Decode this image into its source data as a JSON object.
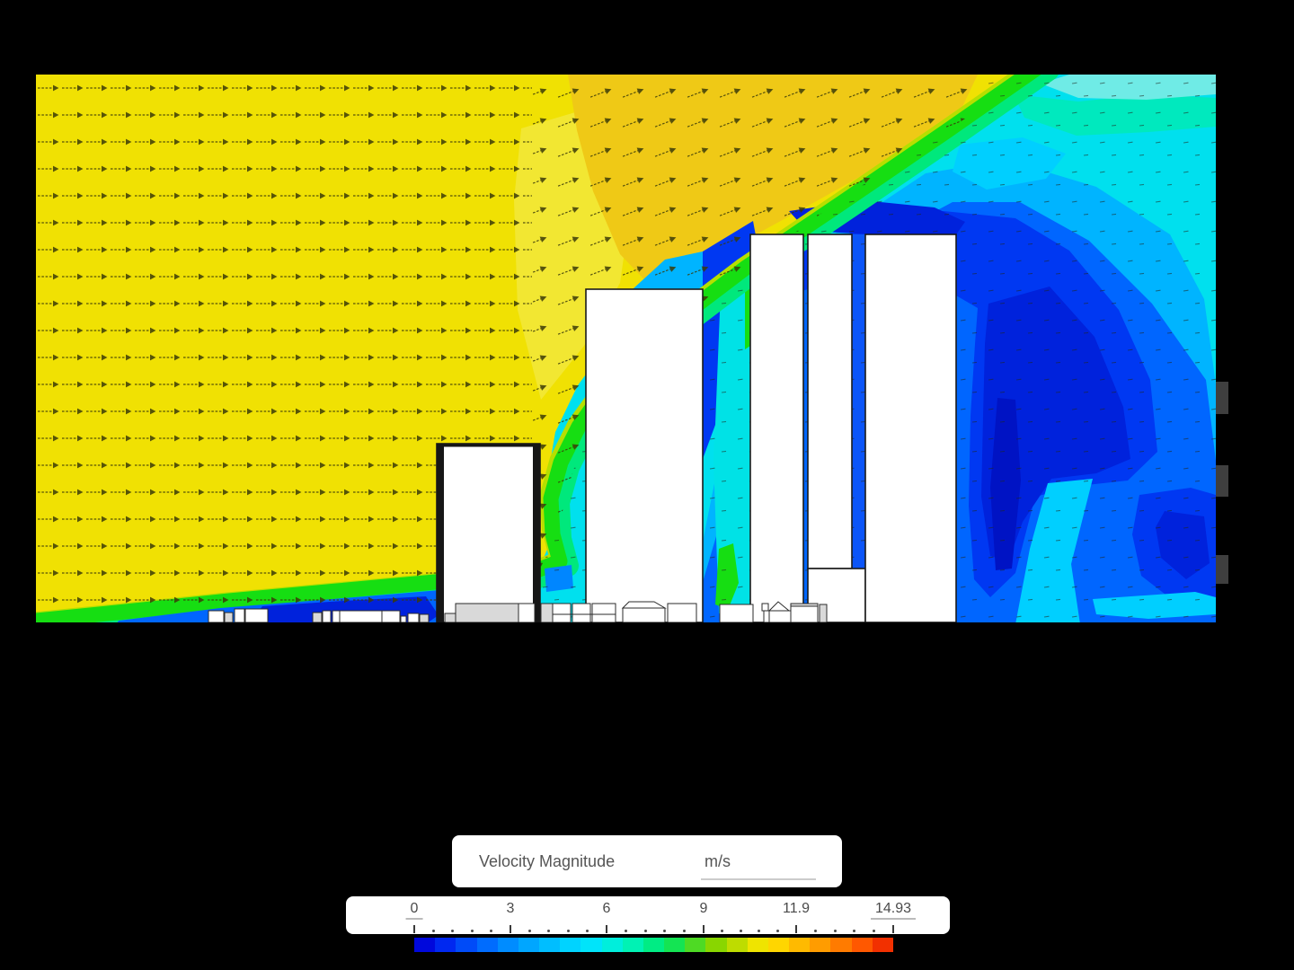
{
  "legend": {
    "title": "Velocity Magnitude",
    "unit": "m/s",
    "tick_labels": [
      "0",
      "3",
      "6",
      "9",
      "11.9",
      "14.93"
    ],
    "min_value": "0",
    "max_value": "14.93",
    "text_color": "#4a4a4a",
    "colorbar_colors": [
      "#0008DC",
      "#0028F0",
      "#004BF8",
      "#006CFE",
      "#008CFF",
      "#00A6FF",
      "#00BEFF",
      "#00D3FF",
      "#00E4FA",
      "#00EEDC",
      "#00F2B4",
      "#00EC84",
      "#14E453",
      "#4EDA24",
      "#89D600",
      "#BEDC00",
      "#EFE400",
      "#FFD600",
      "#FFBA00",
      "#FF9C00",
      "#FF7B00",
      "#FF5800",
      "#F23000"
    ]
  },
  "field": {
    "arrow_color": "#3A3A08",
    "speck_color": "#20261E",
    "palette": {
      "yellow": "#F0E103",
      "paleYellow": "#F4EB52",
      "orange": "#EFC916",
      "yellowGreen": "#B6DF00",
      "green": "#16DE12",
      "springGreen": "#00E87C",
      "mint": "#00E9BE",
      "paleCyan": "#6FEBE6",
      "cyan": "#00E0EE",
      "channelCyan": "#00E2E6",
      "cyanLight": "#00CFFF",
      "skyBlue": "#00B4FF",
      "lightBlue": "#0086FF",
      "blue": "#0066FF",
      "deepBlue": "#0038F2",
      "navy": "#0022DC",
      "darkest": "#0013C4",
      "gapBlue": "#0C55F8",
      "buildingFill": "#FFFFFF",
      "buildingGray": "#D9D9D9",
      "buildingEdge": "#1A1A1A"
    }
  },
  "side_handles": {
    "color": "#3F3F3F"
  }
}
